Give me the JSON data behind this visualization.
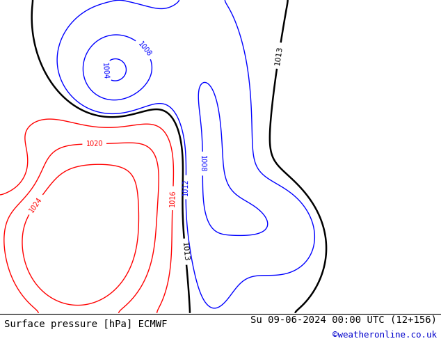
{
  "title_left": "Surface pressure [hPa] ECMWF",
  "title_right": "Su 09-06-2024 00:00 UTC (12+156)",
  "copyright": "©weatheronline.co.uk",
  "ocean_color": "#e0e0e0",
  "land_color": "#c8ddc8",
  "land_gray_color": "#b8b8b8",
  "border_color": "#aaaaaa",
  "footer_bg": "#ffffff",
  "lon_min": -45,
  "lon_max": 45,
  "lat_min": 30,
  "lat_max": 75,
  "isobar_levels_red": [
    1016,
    1020,
    1024
  ],
  "isobar_levels_blue": [
    1004,
    1008,
    1012
  ],
  "isobar_level_black": 1013,
  "red_linewidth": 1.0,
  "blue_linewidth": 1.0,
  "black_linewidth": 1.8,
  "label_fontsize": 7,
  "footer_fontsize": 10,
  "copyright_fontsize": 9
}
